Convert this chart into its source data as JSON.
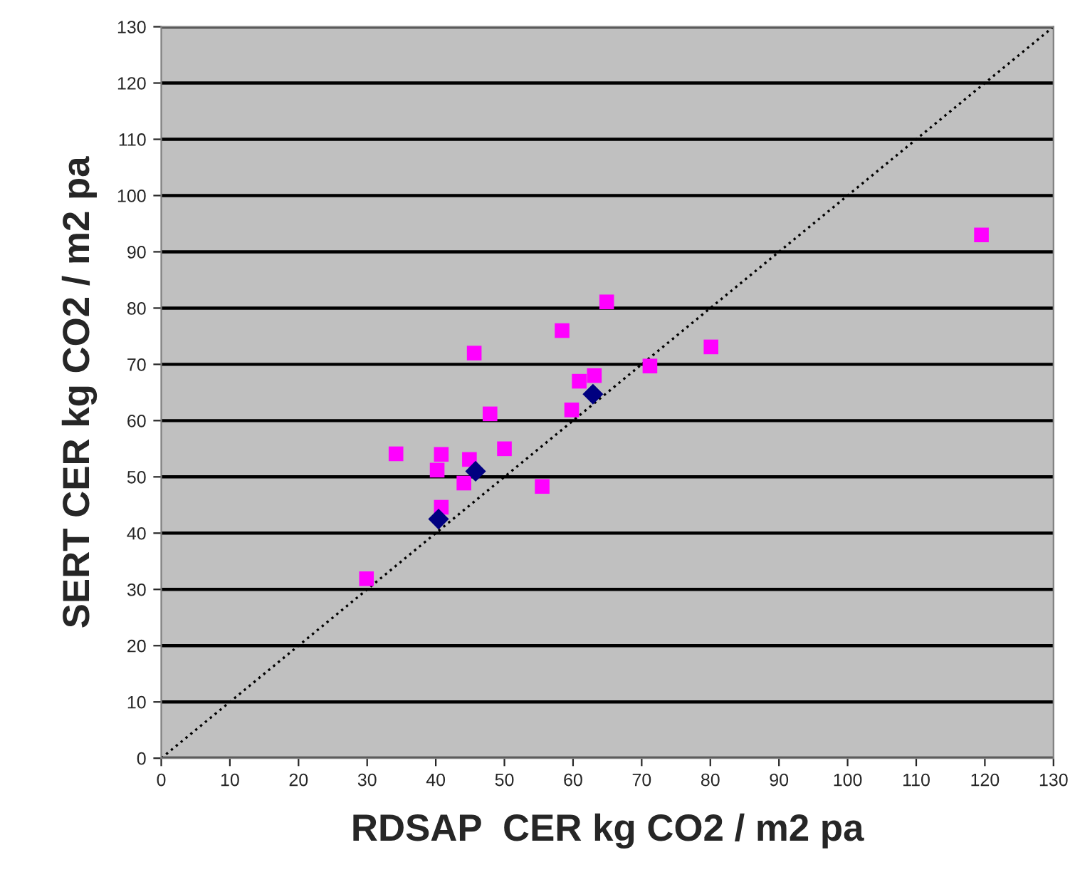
{
  "chart_data": {
    "type": "scatter",
    "xlabel": "RDSAP  CER kg CO2 / m2 pa",
    "ylabel": "SERT CER kg CO2 / m2 pa",
    "xlim": [
      0,
      130
    ],
    "ylim": [
      0,
      130
    ],
    "xticks": [
      0,
      10,
      20,
      30,
      40,
      50,
      60,
      70,
      80,
      90,
      100,
      110,
      120,
      130
    ],
    "yticks": [
      0,
      10,
      20,
      30,
      40,
      50,
      60,
      70,
      80,
      90,
      100,
      110,
      120,
      130
    ],
    "grid": "y",
    "series": [
      {
        "type": "line",
        "color": "#000000",
        "x": [
          0,
          130
        ],
        "values": [
          0,
          130
        ],
        "marker": "none",
        "line_style": "dotted"
      },
      {
        "color": "#ff00ff",
        "marker": "square",
        "x": [
          64.9,
          58.4,
          45.6,
          80.1,
          71.2,
          63.1,
          60.9,
          59.8,
          47.9,
          50.0,
          34.2,
          40.8,
          44.9,
          40.2,
          44.1,
          55.5,
          40.8,
          29.9,
          119.5
        ],
        "values": [
          81.1,
          76.0,
          72.0,
          73.1,
          69.7,
          68.0,
          67.0,
          61.9,
          61.2,
          55.0,
          54.1,
          54.0,
          53.1,
          51.2,
          48.9,
          48.3,
          44.6,
          31.9,
          93.0
        ]
      },
      {
        "color": "#000080",
        "marker": "diamond",
        "x": [
          62.9,
          45.8,
          40.4
        ],
        "values": [
          64.7,
          51.0,
          42.5
        ]
      }
    ]
  }
}
